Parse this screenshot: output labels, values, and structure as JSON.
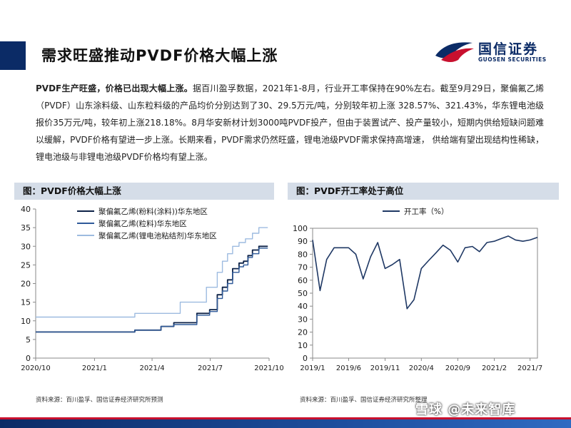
{
  "slide": {
    "title": "需求旺盛推动PVDF价格大幅上涨",
    "logo_cn": "国信证券",
    "logo_en": "GUOSEN SECURITIES",
    "paragraph_lead": "PVDF生产旺盛，价格已出现大幅上涨。",
    "paragraph_body": "据百川盈孚数据，2021年1-8月，行业开工率保持在90%左右。截至9月29日，聚偏氟乙烯（PVDF）山东涂料级、山东粒料级的产品均价分别达到了30、29.5万元/吨，分别较年初上涨 328.57%、321.43%，华东锂电池级报价35万元/吨，较年初上涨218.18%。8月华安新材计划3000吨PVDF投产，但由于装置试产、投产量较小，短期内供给短缺问题难以缓解，PVDF价格有望进一步上涨。长期来看，PVDF需求仍然旺盛，锂电池级PVDF需求保持高增速，  供给端有望出现结构性稀缺，锂电池级与非锂电池级PVDF价格均有望上涨。",
    "watermark": "雪球 @未来智库",
    "colors": {
      "navy": "#0b2b66",
      "red": "#c8102e",
      "panel_header": "#d5dde8"
    }
  },
  "left_panel": {
    "header": "图：PVDF价格大幅上涨",
    "source": "资料来源：百川盈孚、国信证券经济研究所预测"
  },
  "right_panel": {
    "header": "图：PVDF开工率处于高位",
    "source": "资料来源：百川盈孚、国信证券经济研究所整理"
  },
  "chart_data": [
    {
      "type": "line",
      "title": "",
      "xlabel": "",
      "ylabel": "",
      "x_ticks": [
        "2020/10",
        "2021/1",
        "2021/4",
        "2021/7",
        "2021/10"
      ],
      "xlim": [
        "2020-10-01",
        "2021-10-01"
      ],
      "ylim": [
        0,
        40
      ],
      "y_ticks": [
        0,
        5,
        10,
        15,
        20,
        25,
        30,
        35,
        40
      ],
      "grid": false,
      "legend_position": "top-left",
      "series": [
        {
          "name": "聚偏氟乙烯(粉料(涂料))华东地区",
          "color": "#0d2247",
          "width": 1.8,
          "points": [
            [
              "2020-10-01",
              7
            ],
            [
              "2021-03-05",
              7
            ],
            [
              "2021-03-05",
              7.5
            ],
            [
              "2021-04-15",
              7.5
            ],
            [
              "2021-04-15",
              8.5
            ],
            [
              "2021-05-05",
              8.5
            ],
            [
              "2021-05-05",
              9.5
            ],
            [
              "2021-06-10",
              9.5
            ],
            [
              "2021-06-10",
              12
            ],
            [
              "2021-06-30",
              12
            ],
            [
              "2021-06-30",
              13
            ],
            [
              "2021-07-12",
              13
            ],
            [
              "2021-07-12",
              17
            ],
            [
              "2021-07-20",
              17
            ],
            [
              "2021-07-20",
              19
            ],
            [
              "2021-07-28",
              19
            ],
            [
              "2021-07-28",
              21
            ],
            [
              "2021-08-05",
              21
            ],
            [
              "2021-08-05",
              24
            ],
            [
              "2021-08-15",
              24
            ],
            [
              "2021-08-15",
              25.5
            ],
            [
              "2021-08-22",
              25.5
            ],
            [
              "2021-08-22",
              26
            ],
            [
              "2021-08-29",
              26
            ],
            [
              "2021-08-29",
              27.5
            ],
            [
              "2021-09-05",
              27.5
            ],
            [
              "2021-09-05",
              29
            ],
            [
              "2021-09-15",
              29
            ],
            [
              "2021-09-15",
              30
            ],
            [
              "2021-09-29",
              30
            ]
          ]
        },
        {
          "name": "聚偏氟乙烯(粒料)华东地区",
          "color": "#2f5a99",
          "width": 1.4,
          "points": [
            [
              "2020-10-01",
              7
            ],
            [
              "2021-03-05",
              7
            ],
            [
              "2021-03-05",
              7.5
            ],
            [
              "2021-04-15",
              7.5
            ],
            [
              "2021-04-15",
              8.5
            ],
            [
              "2021-05-05",
              8.5
            ],
            [
              "2021-05-05",
              9
            ],
            [
              "2021-06-10",
              9
            ],
            [
              "2021-06-10",
              11.5
            ],
            [
              "2021-06-30",
              11.5
            ],
            [
              "2021-06-30",
              12.5
            ],
            [
              "2021-07-12",
              12.5
            ],
            [
              "2021-07-12",
              16
            ],
            [
              "2021-07-20",
              16
            ],
            [
              "2021-07-20",
              18
            ],
            [
              "2021-07-28",
              18
            ],
            [
              "2021-07-28",
              20
            ],
            [
              "2021-08-05",
              20
            ],
            [
              "2021-08-05",
              23
            ],
            [
              "2021-08-15",
              23
            ],
            [
              "2021-08-15",
              24.5
            ],
            [
              "2021-08-22",
              24.5
            ],
            [
              "2021-08-22",
              25
            ],
            [
              "2021-08-29",
              25
            ],
            [
              "2021-08-29",
              27
            ],
            [
              "2021-09-05",
              27
            ],
            [
              "2021-09-05",
              28
            ],
            [
              "2021-09-15",
              28
            ],
            [
              "2021-09-15",
              29.5
            ],
            [
              "2021-09-29",
              29.5
            ]
          ]
        },
        {
          "name": "聚偏氟乙烯(锂电池粘结剂)华东地区",
          "color": "#9dbbe0",
          "width": 1.4,
          "points": [
            [
              "2020-10-01",
              11
            ],
            [
              "2021-03-05",
              11
            ],
            [
              "2021-03-05",
              12
            ],
            [
              "2021-05-15",
              12
            ],
            [
              "2021-05-15",
              15
            ],
            [
              "2021-06-25",
              15
            ],
            [
              "2021-06-25",
              19
            ],
            [
              "2021-07-12",
              19
            ],
            [
              "2021-07-12",
              23
            ],
            [
              "2021-07-20",
              23
            ],
            [
              "2021-07-20",
              26
            ],
            [
              "2021-07-28",
              26
            ],
            [
              "2021-07-28",
              28
            ],
            [
              "2021-08-05",
              28
            ],
            [
              "2021-08-05",
              30
            ],
            [
              "2021-08-15",
              30
            ],
            [
              "2021-08-15",
              31
            ],
            [
              "2021-08-25",
              31
            ],
            [
              "2021-08-25",
              32
            ],
            [
              "2021-09-05",
              32
            ],
            [
              "2021-09-05",
              33.5
            ],
            [
              "2021-09-15",
              33.5
            ],
            [
              "2021-09-15",
              35
            ],
            [
              "2021-09-29",
              35
            ]
          ]
        }
      ]
    },
    {
      "type": "line",
      "title": "",
      "xlabel": "",
      "ylabel": "",
      "x_ticks": [
        "2019/1",
        "2019/6",
        "2019/11",
        "2020/4",
        "2020/9",
        "2021/2",
        "2021/7"
      ],
      "xlim": [
        "2019-01",
        "2021-08"
      ],
      "ylim": [
        0,
        100
      ],
      "y_ticks": [
        0,
        10,
        20,
        30,
        40,
        50,
        60,
        70,
        80,
        90,
        100
      ],
      "grid": false,
      "legend_position": "top-left",
      "series": [
        {
          "name": "开工率（%）",
          "color": "#1f3864",
          "width": 1.6,
          "points": [
            [
              "2019-01",
              91
            ],
            [
              "2019-02",
              52
            ],
            [
              "2019-03",
              76
            ],
            [
              "2019-04",
              85
            ],
            [
              "2019-05",
              85
            ],
            [
              "2019-06",
              85
            ],
            [
              "2019-07",
              80
            ],
            [
              "2019-08",
              61
            ],
            [
              "2019-09",
              78
            ],
            [
              "2019-10",
              89
            ],
            [
              "2019-11",
              69
            ],
            [
              "2019-12",
              72
            ],
            [
              "2020-01",
              76
            ],
            [
              "2020-02",
              38
            ],
            [
              "2020-03",
              45
            ],
            [
              "2020-04",
              69
            ],
            [
              "2020-05",
              75
            ],
            [
              "2020-06",
              81
            ],
            [
              "2020-07",
              87
            ],
            [
              "2020-08",
              83
            ],
            [
              "2020-09",
              74
            ],
            [
              "2020-10",
              85
            ],
            [
              "2020-11",
              86
            ],
            [
              "2020-12",
              82
            ],
            [
              "2021-01",
              89
            ],
            [
              "2021-02",
              90
            ],
            [
              "2021-03",
              92
            ],
            [
              "2021-04",
              94
            ],
            [
              "2021-05",
              91
            ],
            [
              "2021-06",
              90
            ],
            [
              "2021-07",
              91
            ],
            [
              "2021-08",
              93
            ]
          ]
        }
      ]
    }
  ]
}
